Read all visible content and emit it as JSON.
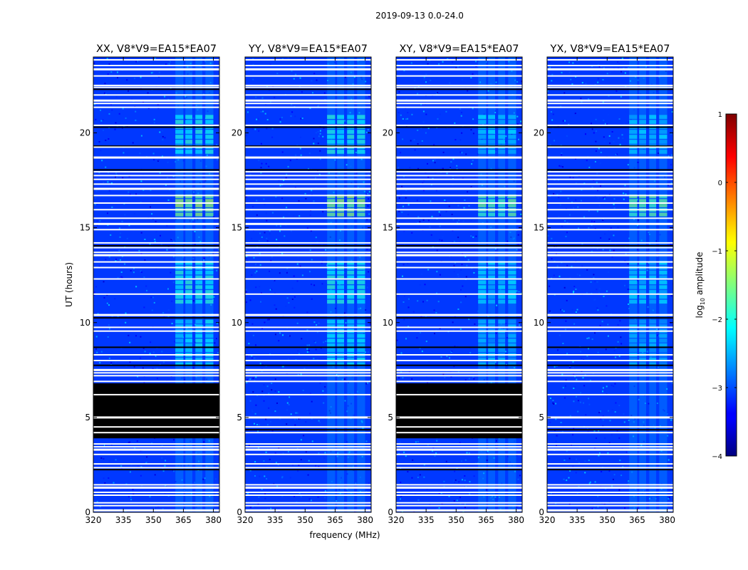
{
  "figure": {
    "suptitle": "2019-09-13 0.0-24.0"
  },
  "chart_data": {
    "type": "heatmap",
    "title": "2019-09-13 0.0-24.0",
    "xlabel": "frequency (MHz)",
    "ylabel": "UT (hours)",
    "xlim": [
      320,
      383
    ],
    "ylim": [
      0,
      24
    ],
    "xticks": [
      320,
      335,
      350,
      365,
      380
    ],
    "yticks": [
      0,
      5,
      10,
      15,
      20
    ],
    "colormap": "jet",
    "colorbar": {
      "label_prefix": "log",
      "label_sub": "10",
      "label_suffix": " amplitude",
      "range": [
        -4,
        1
      ],
      "ticks": [
        1,
        0,
        -1,
        -2,
        -3,
        -4
      ],
      "tick_labels": [
        "1",
        "0",
        "−1",
        "−2",
        "−3",
        "−4"
      ]
    },
    "panels": [
      {
        "title": "XX, V8*V9=EA15*EA07",
        "pol": "XX",
        "show_ylabel": true,
        "show_xlabel": false,
        "flagged_black_ut": [
          3.9,
          6.8
        ]
      },
      {
        "title": "YY, V8*V9=EA15*EA07",
        "pol": "YY",
        "show_ylabel": false,
        "show_xlabel": true,
        "flagged_black_ut": null
      },
      {
        "title": "XY, V8*V9=EA15*EA07",
        "pol": "XY",
        "show_ylabel": false,
        "show_xlabel": false,
        "flagged_black_ut": [
          3.9,
          6.8
        ]
      },
      {
        "title": "YX, V8*V9=EA15*EA07",
        "pol": "YX",
        "show_ylabel": false,
        "show_xlabel": false,
        "flagged_black_ut": null
      }
    ],
    "flagged_white_ut": [
      0.1,
      0.35,
      0.5,
      0.9,
      1.05,
      1.3,
      1.45,
      2.35,
      2.55,
      3.05,
      3.3,
      3.45,
      3.6,
      4.2,
      4.5,
      5.0,
      6.2,
      6.9,
      7.2,
      7.35,
      7.5,
      8.0,
      8.3,
      9.55,
      9.75,
      10.4,
      11.5,
      12.3,
      12.9,
      13.2,
      13.55,
      13.7,
      13.95,
      14.2,
      14.9,
      15.2,
      15.5,
      15.95,
      16.3,
      16.7,
      17.05,
      17.3,
      17.55,
      17.75,
      17.95,
      18.7,
      19.25,
      20.4,
      21.35,
      21.55,
      21.7,
      22.0,
      22.4,
      22.5,
      23.0,
      23.35,
      23.55,
      23.85
    ],
    "flagged_black_lines_ut": [
      2.25,
      4.35,
      7.75,
      8.3,
      8.7,
      10.25,
      14.05,
      18.05,
      19.3,
      20.3,
      22.3
    ],
    "rfi_channels_mhz": [
      [
        361,
        365
      ],
      [
        366,
        369.5
      ],
      [
        371,
        374.5
      ],
      [
        376,
        380
      ]
    ],
    "rfi_bursts": [
      {
        "ut": [
          7.7,
          10.2
        ],
        "peak_log10_amp": -2.0
      },
      {
        "ut": [
          11.0,
          13.3
        ],
        "peak_log10_amp": -1.8
      },
      {
        "ut": [
          15.6,
          16.8
        ],
        "peak_log10_amp": -1.0
      },
      {
        "ut": [
          18.9,
          21.0
        ],
        "peak_log10_amp": -1.8
      }
    ],
    "background_log10_amp": -3.1
  }
}
